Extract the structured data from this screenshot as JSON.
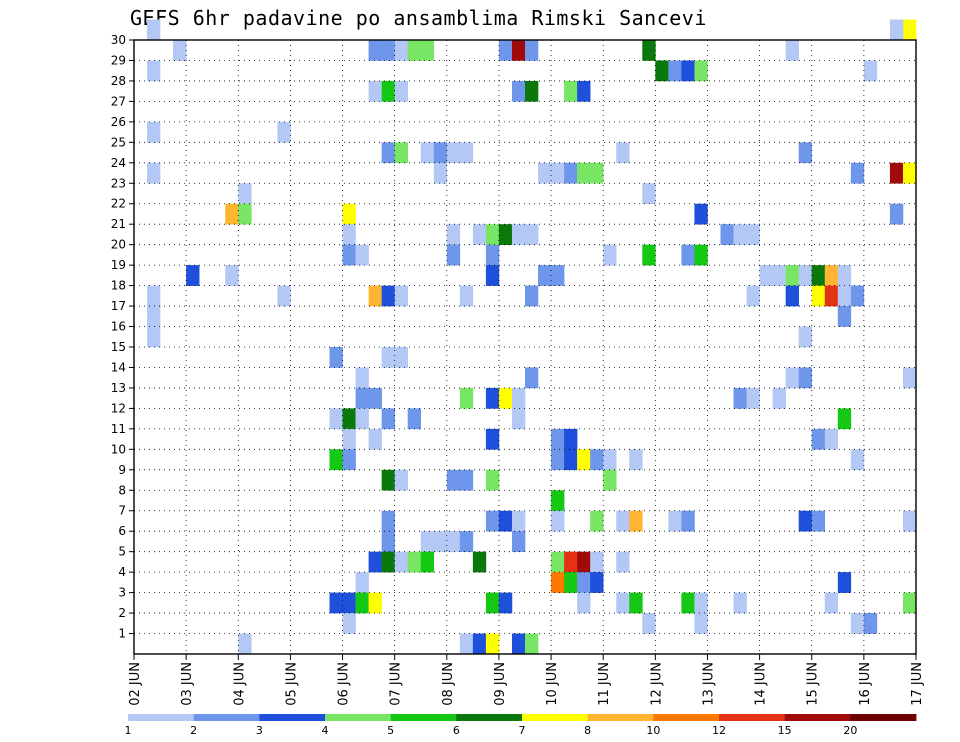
{
  "chart_data": {
    "type": "heatmap",
    "title": "GEFS 6hr padavine po ansamblima Rimski Sancevi",
    "x_tick_labels": [
      "02 JUN",
      "03 JUN",
      "04 JUN",
      "05 JUN",
      "06 JUN",
      "07 JUN",
      "08 JUN",
      "09 JUN",
      "10 JUN",
      "11 JUN",
      "12 JUN",
      "13 JUN",
      "14 JUN",
      "15 JUN",
      "16 JUN",
      "17 JUN"
    ],
    "y_tick_labels": [
      "1",
      "2",
      "3",
      "4",
      "5",
      "6",
      "7",
      "8",
      "9",
      "10",
      "11",
      "12",
      "13",
      "14",
      "15",
      "16",
      "17",
      "18",
      "19",
      "20",
      "21",
      "22",
      "23",
      "24",
      "25",
      "26",
      "27",
      "28",
      "29",
      "30"
    ],
    "y_range": [
      0,
      30
    ],
    "time_steps": 60,
    "grid": true,
    "legend_placement": "bottom",
    "colorbar": {
      "levels": [
        "1",
        "2",
        "3",
        "4",
        "5",
        "6",
        "7",
        "8",
        "10",
        "12",
        "15",
        "20"
      ],
      "colors": [
        "#b4c8f5",
        "#6e96eb",
        "#1e50dc",
        "#78e664",
        "#14c814",
        "#0a780a",
        "#ffff00",
        "#ffb432",
        "#ff7800",
        "#e63214",
        "#a00a0a",
        "#6e0000"
      ]
    },
    "cells": [
      [
        1,
        30,
        0
      ],
      [
        3,
        29,
        0
      ],
      [
        3,
        29,
        0
      ],
      [
        59,
        30,
        6
      ],
      [
        58,
        30,
        0
      ],
      [
        18,
        29,
        1
      ],
      [
        19,
        29,
        1
      ],
      [
        20,
        29,
        0
      ],
      [
        21,
        29,
        3
      ],
      [
        22,
        29,
        3
      ],
      [
        28,
        29,
        1
      ],
      [
        29,
        29,
        10
      ],
      [
        30,
        29,
        1
      ],
      [
        39,
        29,
        5
      ],
      [
        50,
        29,
        0
      ],
      [
        1,
        28,
        0
      ],
      [
        40,
        28,
        5
      ],
      [
        41,
        28,
        1
      ],
      [
        42,
        28,
        2
      ],
      [
        43,
        28,
        3
      ],
      [
        56,
        28,
        0
      ],
      [
        18,
        27,
        0
      ],
      [
        19,
        27,
        4
      ],
      [
        20,
        27,
        0
      ],
      [
        29,
        27,
        1
      ],
      [
        30,
        27,
        5
      ],
      [
        33,
        27,
        3
      ],
      [
        34,
        27,
        2
      ],
      [
        1,
        25,
        0
      ],
      [
        11,
        25,
        0
      ],
      [
        19,
        24,
        1
      ],
      [
        20,
        24,
        3
      ],
      [
        22,
        24,
        0
      ],
      [
        23,
        24,
        1
      ],
      [
        24,
        24,
        0
      ],
      [
        25,
        24,
        0
      ],
      [
        37,
        24,
        0
      ],
      [
        51,
        24,
        1
      ],
      [
        1,
        23,
        0
      ],
      [
        23,
        23,
        0
      ],
      [
        31,
        23,
        0
      ],
      [
        32,
        23,
        0
      ],
      [
        33,
        23,
        1
      ],
      [
        34,
        23,
        3
      ],
      [
        35,
        23,
        3
      ],
      [
        55,
        23,
        1
      ],
      [
        58,
        23,
        10
      ],
      [
        59,
        23,
        6
      ],
      [
        8,
        22,
        0
      ],
      [
        39,
        22,
        0
      ],
      [
        7,
        21,
        7
      ],
      [
        8,
        21,
        3
      ],
      [
        16,
        21,
        6
      ],
      [
        43,
        21,
        2
      ],
      [
        58,
        21,
        1
      ],
      [
        16,
        20,
        0
      ],
      [
        24,
        20,
        0
      ],
      [
        26,
        20,
        0
      ],
      [
        27,
        20,
        3
      ],
      [
        28,
        20,
        5
      ],
      [
        29,
        20,
        0
      ],
      [
        30,
        20,
        0
      ],
      [
        45,
        20,
        1
      ],
      [
        46,
        20,
        0
      ],
      [
        47,
        20,
        0
      ],
      [
        16,
        19,
        1
      ],
      [
        17,
        19,
        0
      ],
      [
        24,
        19,
        1
      ],
      [
        27,
        19,
        1
      ],
      [
        36,
        19,
        0
      ],
      [
        39,
        19,
        4
      ],
      [
        42,
        19,
        1
      ],
      [
        43,
        19,
        4
      ],
      [
        4,
        18,
        2
      ],
      [
        7,
        18,
        0
      ],
      [
        27,
        18,
        2
      ],
      [
        31,
        18,
        1
      ],
      [
        32,
        18,
        1
      ],
      [
        48,
        18,
        0
      ],
      [
        49,
        18,
        0
      ],
      [
        50,
        18,
        3
      ],
      [
        51,
        18,
        0
      ],
      [
        52,
        18,
        5
      ],
      [
        53,
        18,
        7
      ],
      [
        54,
        18,
        0
      ],
      [
        1,
        17,
        0
      ],
      [
        11,
        17,
        0
      ],
      [
        18,
        17,
        7
      ],
      [
        19,
        17,
        2
      ],
      [
        20,
        17,
        0
      ],
      [
        25,
        17,
        0
      ],
      [
        30,
        17,
        1
      ],
      [
        47,
        17,
        0
      ],
      [
        50,
        17,
        2
      ],
      [
        52,
        17,
        6
      ],
      [
        53,
        17,
        9
      ],
      [
        54,
        17,
        0
      ],
      [
        55,
        17,
        1
      ],
      [
        1,
        16,
        0
      ],
      [
        54,
        16,
        1
      ],
      [
        1,
        15,
        0
      ],
      [
        51,
        15,
        0
      ],
      [
        15,
        14,
        1
      ],
      [
        19,
        14,
        0
      ],
      [
        20,
        14,
        0
      ],
      [
        17,
        13,
        0
      ],
      [
        30,
        13,
        1
      ],
      [
        50,
        13,
        0
      ],
      [
        51,
        13,
        1
      ],
      [
        59,
        13,
        0
      ],
      [
        17,
        12,
        1
      ],
      [
        18,
        12,
        1
      ],
      [
        25,
        12,
        3
      ],
      [
        27,
        12,
        2
      ],
      [
        28,
        12,
        6
      ],
      [
        29,
        12,
        0
      ],
      [
        46,
        12,
        1
      ],
      [
        47,
        12,
        0
      ],
      [
        49,
        12,
        0
      ],
      [
        15,
        11,
        0
      ],
      [
        16,
        11,
        5
      ],
      [
        17,
        11,
        0
      ],
      [
        19,
        11,
        1
      ],
      [
        21,
        11,
        1
      ],
      [
        29,
        11,
        0
      ],
      [
        54,
        11,
        4
      ],
      [
        16,
        10,
        0
      ],
      [
        18,
        10,
        0
      ],
      [
        27,
        10,
        2
      ],
      [
        32,
        10,
        1
      ],
      [
        33,
        10,
        2
      ],
      [
        52,
        10,
        1
      ],
      [
        53,
        10,
        0
      ],
      [
        15,
        9,
        4
      ],
      [
        16,
        9,
        1
      ],
      [
        32,
        9,
        1
      ],
      [
        33,
        9,
        2
      ],
      [
        34,
        9,
        6
      ],
      [
        35,
        9,
        1
      ],
      [
        36,
        9,
        0
      ],
      [
        38,
        9,
        0
      ],
      [
        55,
        9,
        0
      ],
      [
        19,
        8,
        5
      ],
      [
        20,
        8,
        0
      ],
      [
        24,
        8,
        1
      ],
      [
        25,
        8,
        1
      ],
      [
        27,
        8,
        3
      ],
      [
        36,
        8,
        3
      ],
      [
        32,
        7,
        4
      ],
      [
        19,
        6,
        1
      ],
      [
        27,
        6,
        1
      ],
      [
        28,
        6,
        2
      ],
      [
        29,
        6,
        0
      ],
      [
        32,
        6,
        0
      ],
      [
        35,
        6,
        3
      ],
      [
        37,
        6,
        0
      ],
      [
        38,
        6,
        7
      ],
      [
        41,
        6,
        0
      ],
      [
        42,
        6,
        1
      ],
      [
        51,
        6,
        2
      ],
      [
        52,
        6,
        1
      ],
      [
        59,
        6,
        0
      ],
      [
        19,
        5,
        1
      ],
      [
        22,
        5,
        0
      ],
      [
        23,
        5,
        0
      ],
      [
        24,
        5,
        0
      ],
      [
        25,
        5,
        1
      ],
      [
        29,
        5,
        1
      ],
      [
        18,
        4,
        2
      ],
      [
        19,
        4,
        5
      ],
      [
        20,
        4,
        0
      ],
      [
        21,
        4,
        3
      ],
      [
        22,
        4,
        4
      ],
      [
        26,
        4,
        5
      ],
      [
        32,
        4,
        3
      ],
      [
        33,
        4,
        9
      ],
      [
        34,
        4,
        10
      ],
      [
        35,
        4,
        0
      ],
      [
        37,
        4,
        0
      ],
      [
        17,
        3,
        0
      ],
      [
        32,
        3,
        8
      ],
      [
        33,
        3,
        4
      ],
      [
        34,
        3,
        1
      ],
      [
        35,
        3,
        2
      ],
      [
        54,
        3,
        2
      ],
      [
        15,
        2,
        2
      ],
      [
        16,
        2,
        2
      ],
      [
        17,
        2,
        4
      ],
      [
        18,
        2,
        6
      ],
      [
        27,
        2,
        4
      ],
      [
        28,
        2,
        2
      ],
      [
        34,
        2,
        0
      ],
      [
        37,
        2,
        0
      ],
      [
        38,
        2,
        4
      ],
      [
        42,
        2,
        4
      ],
      [
        43,
        2,
        0
      ],
      [
        46,
        2,
        0
      ],
      [
        53,
        2,
        0
      ],
      [
        59,
        2,
        3
      ],
      [
        16,
        1,
        0
      ],
      [
        39,
        1,
        0
      ],
      [
        43,
        1,
        0
      ],
      [
        55,
        1,
        0
      ],
      [
        56,
        1,
        1
      ],
      [
        8,
        0,
        0
      ],
      [
        25,
        0,
        0
      ],
      [
        26,
        0,
        2
      ],
      [
        27,
        0,
        6
      ],
      [
        29,
        0,
        2
      ],
      [
        30,
        0,
        3
      ]
    ]
  }
}
